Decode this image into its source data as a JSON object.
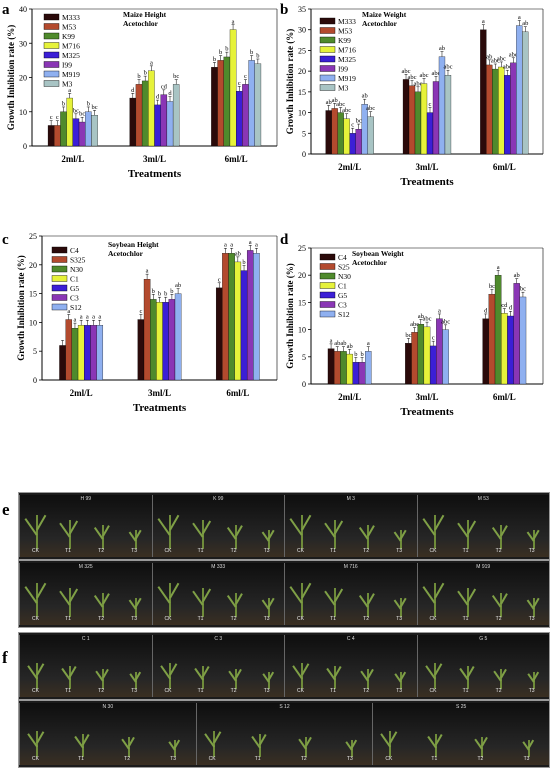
{
  "chart_data": [
    {
      "panel": "a",
      "type": "bar",
      "title": "Maize Height\nAcetochlor",
      "xlabel": "Treatments",
      "ylabel": "Growth Inhibition rate (%)",
      "categories": [
        "2ml/L",
        "3ml/L",
        "6ml/L"
      ],
      "ylim": [
        0,
        40
      ],
      "yticks": [
        0,
        10,
        20,
        30,
        40
      ],
      "legend_position": "top-left",
      "series": [
        {
          "name": "M333",
          "color": "#2b0a0a",
          "values": [
            6,
            14,
            23
          ],
          "labels": [
            "c",
            "d",
            "b"
          ]
        },
        {
          "name": "M53",
          "color": "#b34a2e",
          "values": [
            6,
            18,
            25
          ],
          "labels": [
            "c",
            "b",
            "b"
          ]
        },
        {
          "name": "K99",
          "color": "#4f8a2c",
          "values": [
            10,
            19,
            26
          ],
          "labels": [
            "b",
            "b",
            "b"
          ]
        },
        {
          "name": "M716",
          "color": "#e6f23a",
          "values": [
            14,
            22,
            34
          ],
          "labels": [
            "a",
            "a",
            "a"
          ]
        },
        {
          "name": "M325",
          "color": "#3b1fd6",
          "values": [
            8,
            12,
            16
          ],
          "labels": [
            "bc",
            "d",
            "c"
          ]
        },
        {
          "name": "I99",
          "color": "#8a36b5",
          "values": [
            7,
            15,
            18
          ],
          "labels": [
            "bc",
            "cd",
            "c"
          ]
        },
        {
          "name": "M919",
          "color": "#8fb0f0",
          "values": [
            10,
            13,
            25
          ],
          "labels": [
            "b",
            "d",
            "b"
          ]
        },
        {
          "name": "M3",
          "color": "#a8c4c4",
          "values": [
            9,
            18,
            24
          ],
          "labels": [
            "bc",
            "bc",
            "b"
          ]
        }
      ]
    },
    {
      "panel": "b",
      "type": "bar",
      "title": "Maize Weight\nAcetochlor",
      "xlabel": "Treatments",
      "ylabel": "Growth Inhibition rate (%)",
      "categories": [
        "2ml/L",
        "3ml/L",
        "6ml/L"
      ],
      "ylim": [
        0,
        35
      ],
      "yticks": [
        0,
        5,
        10,
        15,
        20,
        25,
        30,
        35
      ],
      "legend_position": "top-left",
      "series": [
        {
          "name": "M333",
          "color": "#2b0a0a",
          "values": [
            10.5,
            18,
            30
          ],
          "labels": [
            "ab",
            "abc",
            "a"
          ]
        },
        {
          "name": "M53",
          "color": "#b34a2e",
          "values": [
            11,
            16.5,
            21.5
          ],
          "labels": [
            "ab",
            "abc",
            "ab"
          ]
        },
        {
          "name": "K99",
          "color": "#4f8a2c",
          "values": [
            10,
            15,
            20.5
          ],
          "labels": [
            "abc",
            "abc",
            "abc"
          ]
        },
        {
          "name": "M716",
          "color": "#e6f23a",
          "values": [
            8.5,
            17,
            21
          ],
          "labels": [
            "abc",
            "abc",
            "abc"
          ]
        },
        {
          "name": "M325",
          "color": "#3b1fd6",
          "values": [
            5,
            10,
            19
          ],
          "labels": [
            "c",
            "c",
            "abc"
          ]
        },
        {
          "name": "I99",
          "color": "#8a36b5",
          "values": [
            6,
            17.5,
            22
          ],
          "labels": [
            "bc",
            "abc",
            "abc"
          ]
        },
        {
          "name": "M919",
          "color": "#8fb0f0",
          "values": [
            12,
            23.5,
            31
          ],
          "labels": [
            "ab",
            "ab",
            "a"
          ]
        },
        {
          "name": "M3",
          "color": "#a8c4c4",
          "values": [
            9,
            19,
            29.5
          ],
          "labels": [
            "abc",
            "abc",
            "ab"
          ]
        }
      ]
    },
    {
      "panel": "c",
      "type": "bar",
      "title": "Soybean Height\nAcetochlor",
      "xlabel": "Treatments",
      "ylabel": "Growth Inhibition rate (%)",
      "categories": [
        "2ml/L",
        "3ml/L",
        "6ml/L"
      ],
      "ylim": [
        0,
        25
      ],
      "yticks": [
        0,
        5,
        10,
        15,
        20,
        25
      ],
      "legend_position": "top-left",
      "series": [
        {
          "name": "C4",
          "color": "#2b0a0a",
          "values": [
            6,
            10.5,
            16
          ],
          "labels": [
            "",
            "c",
            "c"
          ]
        },
        {
          "name": "S325",
          "color": "#b34a2e",
          "values": [
            10.5,
            17.5,
            22
          ],
          "labels": [
            "a",
            "a",
            "a"
          ]
        },
        {
          "name": "N30",
          "color": "#4f8a2c",
          "values": [
            9,
            14,
            22
          ],
          "labels": [
            "a",
            "b",
            "a"
          ]
        },
        {
          "name": "C1",
          "color": "#e6f23a",
          "values": [
            9.5,
            13.5,
            20.5
          ],
          "labels": [
            "a",
            "b",
            "ab"
          ]
        },
        {
          "name": "G5",
          "color": "#3b1fd6",
          "values": [
            9.5,
            13.5,
            19
          ],
          "labels": [
            "a",
            "b",
            "b"
          ]
        },
        {
          "name": "C3",
          "color": "#8a36b5",
          "values": [
            9.5,
            14,
            22.5
          ],
          "labels": [
            "a",
            "b",
            "a"
          ]
        },
        {
          "name": "S12",
          "color": "#8fb0f0",
          "values": [
            9.5,
            15,
            22
          ],
          "labels": [
            "a",
            "ab",
            "a"
          ]
        }
      ]
    },
    {
      "panel": "d",
      "type": "bar",
      "title": "Soybean Weight\nAcetochlor",
      "xlabel": "Treatments",
      "ylabel": "Growth Inhibition rate (%)",
      "categories": [
        "2ml/L",
        "3ml/L",
        "6ml/L"
      ],
      "ylim": [
        0,
        25
      ],
      "yticks": [
        0,
        5,
        10,
        15,
        20,
        25
      ],
      "legend_position": "top-left",
      "series": [
        {
          "name": "C4",
          "color": "#2b0a0a",
          "values": [
            6.5,
            7.5,
            12
          ],
          "labels": [
            "a",
            "bc",
            "d"
          ]
        },
        {
          "name": "S25",
          "color": "#b34a2e",
          "values": [
            6,
            9.5,
            16.5
          ],
          "labels": [
            "ab",
            "abc",
            "bc"
          ]
        },
        {
          "name": "N30",
          "color": "#4f8a2c",
          "values": [
            6,
            11,
            20
          ],
          "labels": [
            "ab",
            "ab",
            "a"
          ]
        },
        {
          "name": "C1",
          "color": "#e6f23a",
          "values": [
            5.5,
            10.5,
            13
          ],
          "labels": [
            "ab",
            "abc",
            "cd"
          ]
        },
        {
          "name": "G5",
          "color": "#3b1fd6",
          "values": [
            4,
            7,
            12.5
          ],
          "labels": [
            "b",
            "c",
            "d"
          ]
        },
        {
          "name": "C3",
          "color": "#8a36b5",
          "values": [
            4,
            12,
            18.5
          ],
          "labels": [
            "b",
            "a",
            "ab"
          ]
        },
        {
          "name": "S12",
          "color": "#8fb0f0",
          "values": [
            6,
            10,
            16
          ],
          "labels": [
            "a",
            "abc",
            "bc"
          ]
        }
      ]
    }
  ],
  "photos": {
    "e": {
      "letter": "e",
      "rows": [
        [
          {
            "name": "H 99",
            "labels": [
              "CK",
              "T1",
              "T2",
              "T3"
            ]
          },
          {
            "name": "K 99",
            "labels": [
              "CK",
              "T1",
              "T2",
              "T3"
            ]
          },
          {
            "name": "M 3",
            "labels": [
              "CK",
              "T1",
              "T2",
              "T3"
            ]
          },
          {
            "name": "M 53",
            "labels": [
              "CK",
              "T1",
              "T2",
              "T3"
            ]
          }
        ],
        [
          {
            "name": "M 325",
            "labels": [
              "CK",
              "T1",
              "T2",
              "T3"
            ]
          },
          {
            "name": "M 333",
            "labels": [
              "CK",
              "T1",
              "T2",
              "T3"
            ]
          },
          {
            "name": "M 716",
            "labels": [
              "CK",
              "T1",
              "T2",
              "T3"
            ]
          },
          {
            "name": "M 919",
            "labels": [
              "CK",
              "T1",
              "T2",
              "T3"
            ]
          }
        ]
      ]
    },
    "f": {
      "letter": "f",
      "rows": [
        [
          {
            "name": "C 1",
            "labels": [
              "CK",
              "T1",
              "T2",
              "T3"
            ]
          },
          {
            "name": "C 3",
            "labels": [
              "CK",
              "T1",
              "T2",
              "T3"
            ]
          },
          {
            "name": "C 4",
            "labels": [
              "CK",
              "T1",
              "T2",
              "T3"
            ]
          },
          {
            "name": "G 5",
            "labels": [
              "CK",
              "T1",
              "T2",
              "T3"
            ]
          }
        ],
        [
          {
            "name": "N 30",
            "labels": [
              "CK",
              "T1",
              "T2",
              "T3"
            ]
          },
          {
            "name": "S 12",
            "labels": [
              "CK",
              "T1",
              "T2",
              "T3"
            ]
          },
          {
            "name": "S 25",
            "labels": [
              "CK",
              "T1",
              "T2",
              "T3"
            ]
          }
        ]
      ]
    }
  }
}
